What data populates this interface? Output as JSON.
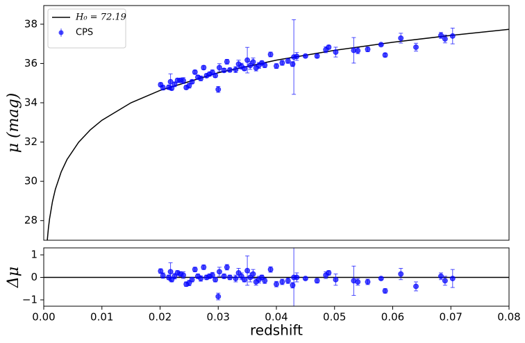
{
  "chart_data": [
    {
      "type": "scatter",
      "ylabel": "μ (mag)",
      "xlim": [
        0,
        0.08
      ],
      "ylim": [
        27.0,
        38.95
      ],
      "yticks": [
        28,
        30,
        32,
        34,
        36,
        38
      ],
      "legend": "upper left",
      "series": [
        {
          "name": "H₀ = 72.19",
          "type": "line",
          "color": "#000000",
          "x": [
            0.0006,
            0.0008,
            0.001,
            0.0015,
            0.002,
            0.003,
            0.004,
            0.006,
            0.008,
            0.01,
            0.015,
            0.02,
            0.03,
            0.04,
            0.05,
            0.06,
            0.07,
            0.08
          ],
          "values": [
            26.98,
            27.61,
            28.09,
            28.97,
            29.6,
            30.48,
            31.11,
            31.99,
            32.62,
            33.11,
            34.0,
            34.63,
            35.53,
            36.17,
            36.67,
            37.08,
            37.43,
            37.74
          ]
        },
        {
          "name": "CPS",
          "type": "errorbar",
          "color": "#0000ff",
          "x": [
            0.0201,
            0.0205,
            0.0215,
            0.0218,
            0.022,
            0.0225,
            0.023,
            0.0235,
            0.024,
            0.0245,
            0.025,
            0.0255,
            0.026,
            0.0265,
            0.027,
            0.0275,
            0.028,
            0.0285,
            0.029,
            0.0295,
            0.03,
            0.0302,
            0.031,
            0.0315,
            0.032,
            0.033,
            0.0335,
            0.034,
            0.0345,
            0.035,
            0.0355,
            0.036,
            0.0365,
            0.037,
            0.0375,
            0.038,
            0.039,
            0.04,
            0.041,
            0.042,
            0.0428,
            0.043,
            0.0435,
            0.045,
            0.047,
            0.0485,
            0.049,
            0.0502,
            0.0533,
            0.054,
            0.0557,
            0.058,
            0.0587,
            0.0614,
            0.064,
            0.0683,
            0.069,
            0.0703
          ],
          "values": [
            34.92,
            34.77,
            34.79,
            35.07,
            34.74,
            34.94,
            35.14,
            35.14,
            35.13,
            34.78,
            34.87,
            35.07,
            35.56,
            35.3,
            35.24,
            35.79,
            35.38,
            35.46,
            35.55,
            35.39,
            34.68,
            35.79,
            35.65,
            36.09,
            35.67,
            35.69,
            35.97,
            35.86,
            35.74,
            36.17,
            35.9,
            36.08,
            35.77,
            35.9,
            36.03,
            35.91,
            36.46,
            35.87,
            36.03,
            36.13,
            35.97,
            36.33,
            36.36,
            36.38,
            36.38,
            36.7,
            36.83,
            36.58,
            36.67,
            36.65,
            36.72,
            36.96,
            36.43,
            37.29,
            36.83,
            37.43,
            37.25,
            37.4
          ],
          "errors": [
            0.1,
            0.12,
            0.1,
            0.4,
            0.1,
            0.12,
            0.1,
            0.1,
            0.15,
            0.1,
            0.12,
            0.1,
            0.1,
            0.1,
            0.12,
            0.1,
            0.1,
            0.1,
            0.12,
            0.1,
            0.15,
            0.2,
            0.1,
            0.12,
            0.1,
            0.15,
            0.2,
            0.15,
            0.1,
            0.65,
            0.2,
            0.2,
            0.15,
            0.15,
            0.1,
            0.12,
            0.12,
            0.12,
            0.12,
            0.12,
            0.12,
            1.9,
            0.2,
            0.05,
            0.1,
            0.15,
            0.1,
            0.25,
            0.65,
            0.15,
            0.12,
            0.05,
            0.1,
            0.25,
            0.2,
            0.15,
            0.2,
            0.4
          ]
        }
      ]
    },
    {
      "type": "scatter",
      "xlabel": "redshift",
      "ylabel": "Δμ",
      "xlim": [
        0,
        0.08
      ],
      "ylim": [
        -1.28,
        1.31
      ],
      "xticks": [
        {
          "value": 0,
          "label": "0.00"
        },
        {
          "value": 0.01,
          "label": "0.01"
        },
        {
          "value": 0.02,
          "label": "0.02"
        },
        {
          "value": 0.03,
          "label": "0.03"
        },
        {
          "value": 0.04,
          "label": "0.04"
        },
        {
          "value": 0.05,
          "label": "0.05"
        },
        {
          "value": 0.06,
          "label": "0.06"
        },
        {
          "value": 0.07,
          "label": "0.07"
        },
        {
          "value": 0.08,
          "label": "0.08"
        }
      ],
      "yticks": [
        {
          "value": -1,
          "label": "−1"
        },
        0,
        1
      ],
      "hline": 0,
      "series": [
        {
          "type": "errorbar",
          "color": "#0000ff",
          "x": [
            0.0201,
            0.0205,
            0.0215,
            0.0218,
            0.022,
            0.0225,
            0.023,
            0.0235,
            0.024,
            0.0245,
            0.025,
            0.0255,
            0.026,
            0.0265,
            0.027,
            0.0275,
            0.028,
            0.0285,
            0.029,
            0.0295,
            0.03,
            0.0302,
            0.031,
            0.0315,
            0.032,
            0.033,
            0.0335,
            0.034,
            0.0345,
            0.035,
            0.0355,
            0.036,
            0.0365,
            0.037,
            0.0375,
            0.038,
            0.039,
            0.04,
            0.041,
            0.042,
            0.0428,
            0.043,
            0.0435,
            0.045,
            0.047,
            0.0485,
            0.049,
            0.0502,
            0.0533,
            0.054,
            0.0557,
            0.058,
            0.0587,
            0.0614,
            0.064,
            0.0683,
            0.069,
            0.0703
          ],
          "values": [
            0.28,
            0.08,
            0.0,
            0.25,
            -0.1,
            0.05,
            0.2,
            0.15,
            0.1,
            -0.3,
            -0.25,
            -0.1,
            0.35,
            0.05,
            -0.05,
            0.45,
            0.0,
            0.05,
            0.1,
            -0.1,
            -0.85,
            0.25,
            0.05,
            0.45,
            0.0,
            -0.05,
            0.2,
            0.05,
            -0.1,
            0.3,
            0.0,
            0.15,
            -0.2,
            -0.1,
            0.0,
            -0.15,
            0.35,
            -0.3,
            -0.2,
            -0.15,
            -0.35,
            0.0,
            0.0,
            -0.05,
            -0.15,
            0.1,
            0.2,
            -0.1,
            -0.15,
            -0.2,
            -0.2,
            -0.05,
            -0.6,
            0.15,
            -0.4,
            0.05,
            -0.15,
            -0.05
          ],
          "errors": [
            0.1,
            0.12,
            0.1,
            0.4,
            0.1,
            0.12,
            0.1,
            0.1,
            0.15,
            0.1,
            0.12,
            0.1,
            0.1,
            0.1,
            0.12,
            0.1,
            0.1,
            0.1,
            0.12,
            0.1,
            0.15,
            0.2,
            0.1,
            0.12,
            0.1,
            0.15,
            0.2,
            0.15,
            0.1,
            0.65,
            0.2,
            0.2,
            0.15,
            0.15,
            0.1,
            0.12,
            0.12,
            0.12,
            0.12,
            0.12,
            0.12,
            1.9,
            0.2,
            0.05,
            0.1,
            0.15,
            0.1,
            0.25,
            0.65,
            0.15,
            0.12,
            0.05,
            0.1,
            0.25,
            0.2,
            0.15,
            0.2,
            0.4
          ]
        }
      ]
    }
  ]
}
